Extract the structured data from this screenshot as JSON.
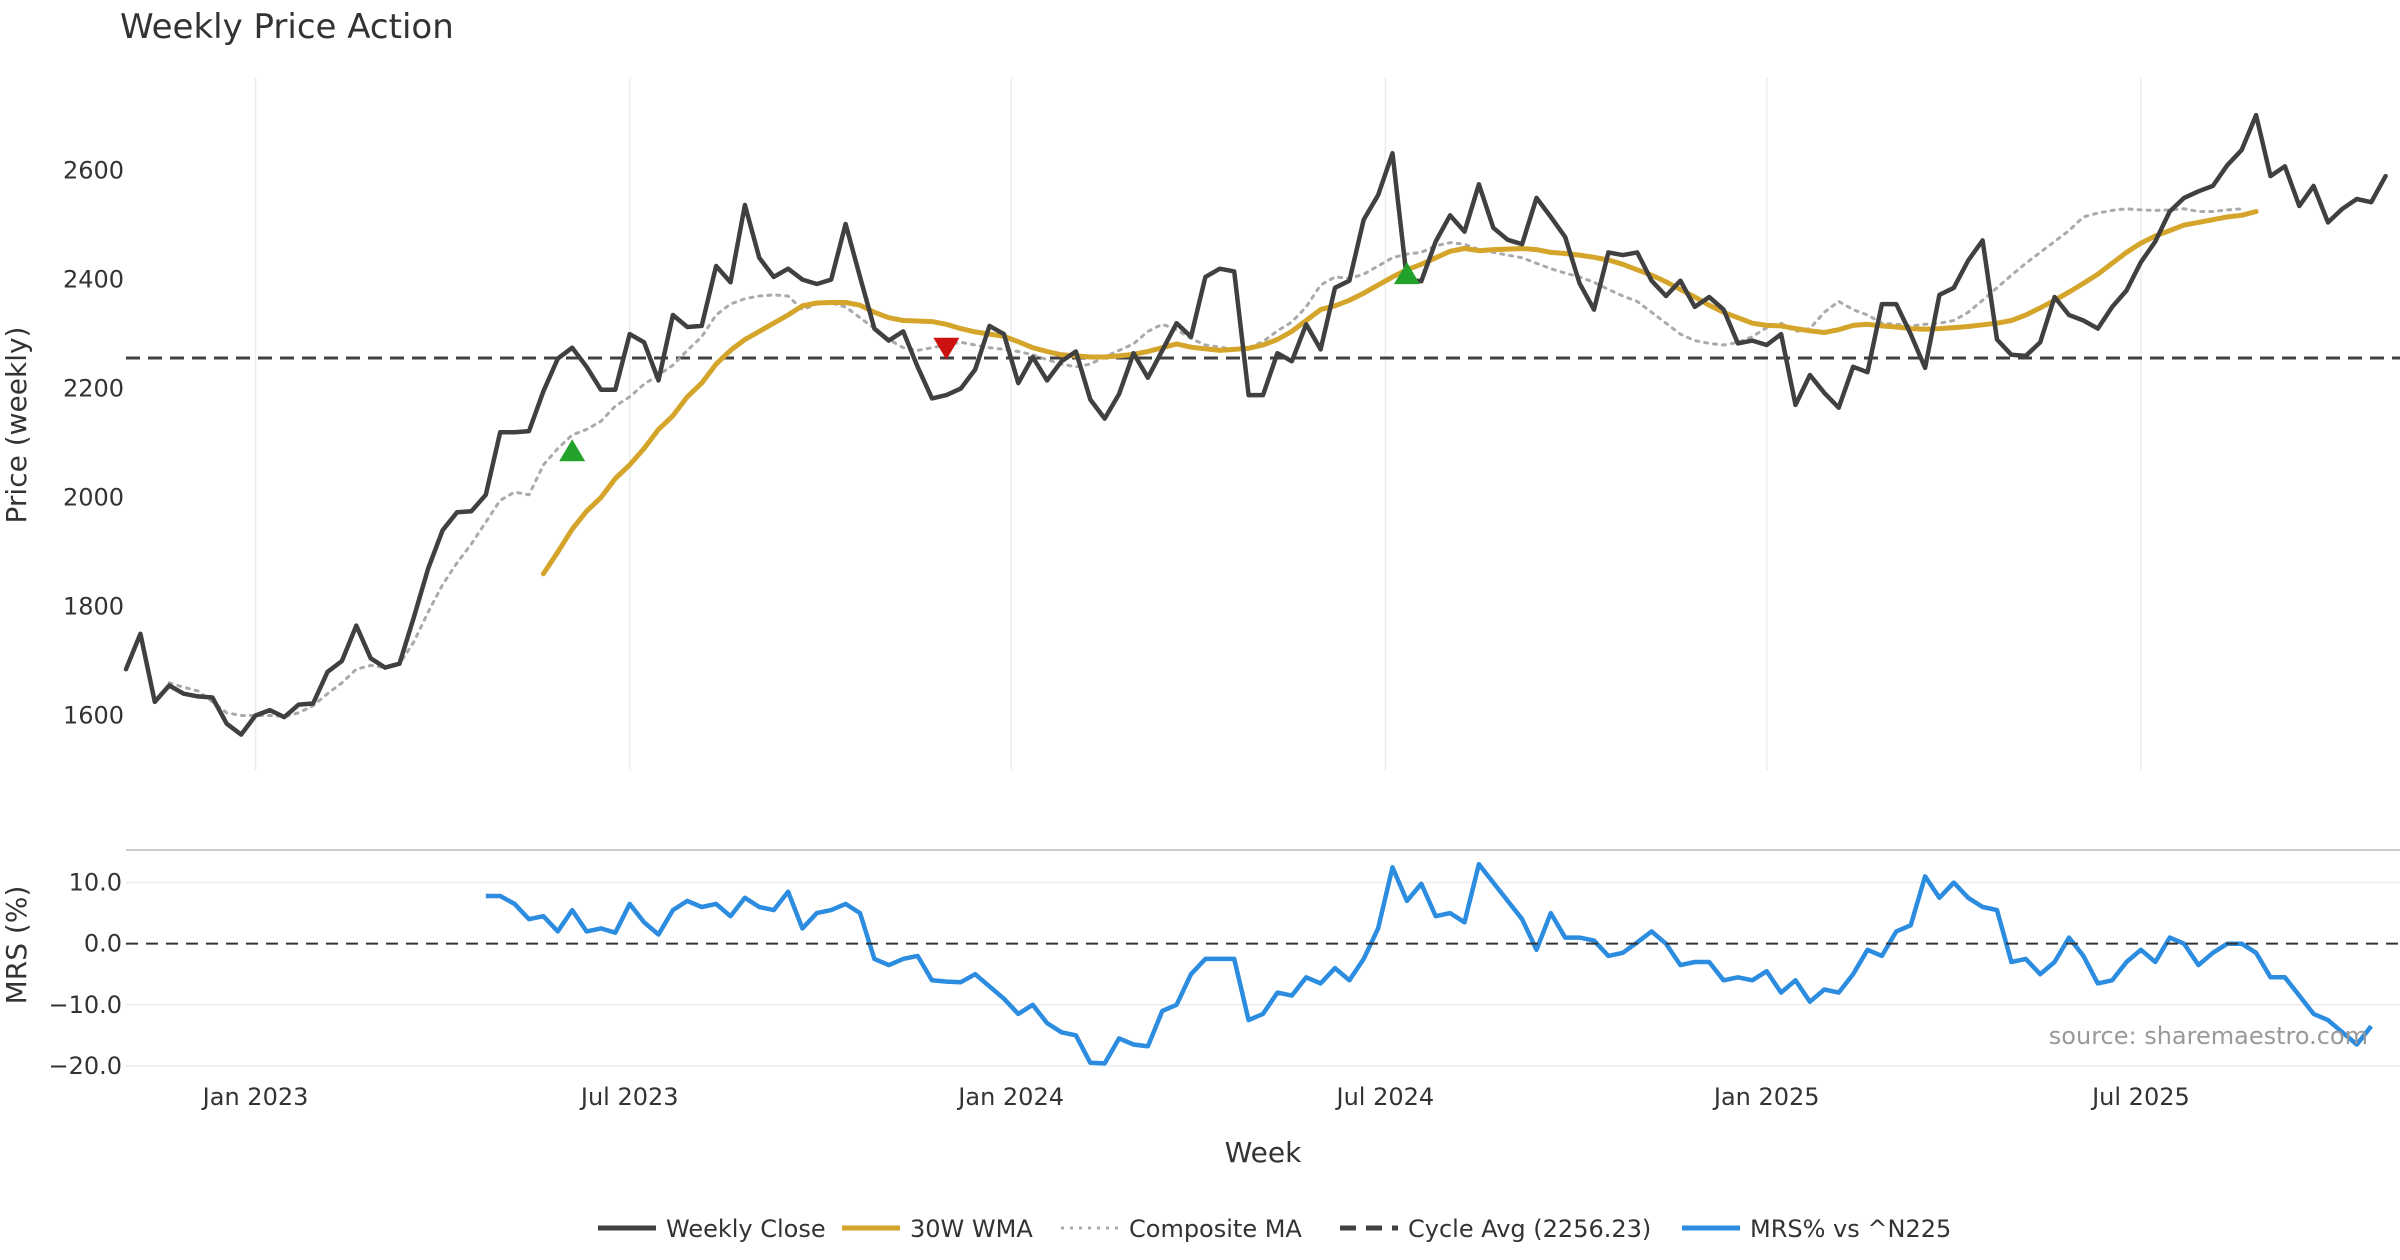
{
  "chart_data": [
    {
      "type": "line",
      "title": "Weekly Price Action",
      "xlabel": "Week",
      "ylabel": "Price (weekly)",
      "ylim": [
        1500,
        2770
      ],
      "yticks": [
        1600,
        1800,
        2000,
        2200,
        2400,
        2600
      ],
      "xticks": [
        {
          "label": "Jan 2023",
          "week": 9
        },
        {
          "label": "Jul 2023",
          "week": 35
        },
        {
          "label": "Jan 2024",
          "week": 61.5
        },
        {
          "label": "Jul 2024",
          "week": 87.5
        },
        {
          "label": "Jan 2025",
          "week": 114
        },
        {
          "label": "Jul 2025",
          "week": 140
        }
      ],
      "x_range": [
        0,
        158
      ],
      "grid": true,
      "series": [
        {
          "name": "Weekly Close",
          "color": "#404040",
          "style": "solid",
          "values": [
            1685,
            1750,
            1625,
            1655,
            1640,
            1635,
            1633,
            1585,
            1565,
            1600,
            1610,
            1597,
            1620,
            1622,
            1680,
            1700,
            1765,
            1705,
            1688,
            1695,
            1780,
            1870,
            1940,
            1973,
            1975,
            2005,
            2120,
            2120,
            2122,
            2195,
            2255,
            2275,
            2240,
            2198,
            2198,
            2300,
            2285,
            2215,
            2335,
            2313,
            2315,
            2425,
            2395,
            2537,
            2440,
            2405,
            2420,
            2400,
            2392,
            2400,
            2502,
            2405,
            2310,
            2288,
            2305,
            2240,
            2182,
            2188,
            2200,
            2235,
            2315,
            2300,
            2210,
            2258,
            2215,
            2250,
            2268,
            2180,
            2145,
            2190,
            2265,
            2220,
            2270,
            2320,
            2295,
            2405,
            2420,
            2415,
            2188,
            2188,
            2265,
            2250,
            2318,
            2272,
            2385,
            2398,
            2510,
            2555,
            2632,
            2400,
            2397,
            2470,
            2518,
            2488,
            2575,
            2495,
            2473,
            2465,
            2550,
            2515,
            2478,
            2393,
            2345,
            2450,
            2445,
            2450,
            2398,
            2370,
            2398,
            2350,
            2368,
            2345,
            2283,
            2288,
            2280,
            2300,
            2170,
            2225,
            2192,
            2165,
            2240,
            2230,
            2355,
            2355,
            2300,
            2238,
            2372,
            2385,
            2435,
            2472,
            2290,
            2262,
            2260,
            2285,
            2368,
            2335,
            2325,
            2310,
            2350,
            2380,
            2432,
            2470,
            2525,
            2550,
            2562,
            2572,
            2610,
            2638,
            2702,
            2590,
            2608,
            2535,
            2572,
            2505,
            2530,
            2548,
            2542,
            2590
          ]
        },
        {
          "name": "30W WMA",
          "color": "#d4a52a",
          "style": "solid",
          "start": 29,
          "values": [
            1860,
            1900,
            1942,
            1975,
            2000,
            2035,
            2060,
            2090,
            2125,
            2150,
            2185,
            2210,
            2245,
            2270,
            2290,
            2305,
            2320,
            2335,
            2352,
            2357,
            2358,
            2358,
            2353,
            2340,
            2330,
            2325,
            2324,
            2323,
            2318,
            2310,
            2304,
            2300,
            2296,
            2286,
            2275,
            2268,
            2262,
            2260,
            2258,
            2258,
            2260,
            2263,
            2268,
            2275,
            2282,
            2276,
            2273,
            2270,
            2272,
            2274,
            2280,
            2290,
            2305,
            2325,
            2345,
            2352,
            2362,
            2375,
            2390,
            2405,
            2418,
            2428,
            2440,
            2452,
            2457,
            2453,
            2455,
            2456,
            2457,
            2455,
            2450,
            2448,
            2445,
            2441,
            2436,
            2428,
            2418,
            2408,
            2396,
            2382,
            2368,
            2353,
            2340,
            2330,
            2320,
            2316,
            2315,
            2310,
            2306,
            2303,
            2308,
            2316,
            2318,
            2315,
            2313,
            2310,
            2309,
            2310,
            2312,
            2314,
            2317,
            2320,
            2325,
            2335,
            2348,
            2362,
            2377,
            2393,
            2410,
            2430,
            2450,
            2467,
            2480,
            2490,
            2500,
            2505,
            2510,
            2515,
            2518,
            2525
          ]
        },
        {
          "name": "Composite MA",
          "color": "#aaaaaa",
          "style": "dotted",
          "start": 3,
          "values": [
            1660,
            1652,
            1645,
            1625,
            1605,
            1600,
            1600,
            1600,
            1598,
            1605,
            1618,
            1640,
            1660,
            1685,
            1692,
            1688,
            1695,
            1735,
            1790,
            1840,
            1880,
            1915,
            1955,
            1995,
            2010,
            2005,
            2060,
            2090,
            2115,
            2125,
            2140,
            2168,
            2185,
            2208,
            2225,
            2243,
            2270,
            2295,
            2335,
            2355,
            2365,
            2370,
            2372,
            2370,
            2345,
            2355,
            2357,
            2350,
            2330,
            2310,
            2290,
            2275,
            2270,
            2275,
            2280,
            2285,
            2280,
            2275,
            2272,
            2268,
            2262,
            2253,
            2245,
            2240,
            2245,
            2258,
            2270,
            2282,
            2305,
            2318,
            2308,
            2292,
            2280,
            2276,
            2272,
            2275,
            2286,
            2306,
            2322,
            2350,
            2390,
            2405,
            2402,
            2410,
            2425,
            2440,
            2447,
            2450,
            2462,
            2468,
            2465,
            2455,
            2450,
            2445,
            2440,
            2430,
            2420,
            2412,
            2405,
            2395,
            2382,
            2370,
            2360,
            2340,
            2320,
            2300,
            2288,
            2283,
            2280,
            2285,
            2295,
            2312,
            2320,
            2305,
            2310,
            2340,
            2360,
            2345,
            2335,
            2320,
            2318,
            2315,
            2318,
            2320,
            2325,
            2340,
            2362,
            2385,
            2408,
            2430,
            2450,
            2470,
            2490,
            2515,
            2522,
            2527,
            2530,
            2528,
            2527,
            2528,
            2530,
            2525,
            2525,
            2528,
            2530
          ]
        },
        {
          "name": "Cycle Avg (2256.23)",
          "color": "#404040",
          "style": "dashed",
          "value": 2256.23
        }
      ],
      "markers": [
        {
          "type": "buy",
          "shape": "triangle-up",
          "color": "#22a12b",
          "week": 31,
          "value": 2085
        },
        {
          "type": "sell",
          "shape": "triangle-down",
          "color": "#cc1111",
          "week": 57,
          "value": 2275
        },
        {
          "type": "buy",
          "shape": "triangle-up",
          "color": "#22a12b",
          "week": 89,
          "value": 2410
        }
      ]
    },
    {
      "type": "line",
      "ylabel": "MRS (%)",
      "ylim": [
        -21,
        15
      ],
      "yticks": [
        -20.0,
        -10.0,
        0.0,
        10.0
      ],
      "ytick_labels": [
        "−20.0",
        "−10.0",
        "0.0",
        "10.0"
      ],
      "x_range": [
        0,
        158
      ],
      "series": [
        {
          "name": "MRS% vs ^N225",
          "color": "#2b8ce0",
          "style": "solid",
          "start": 25,
          "values": [
            7.8,
            7.8,
            6.5,
            4.0,
            4.5,
            2.0,
            5.5,
            2.0,
            2.5,
            1.8,
            6.5,
            3.5,
            1.5,
            5.5,
            7.0,
            6.0,
            6.5,
            4.5,
            7.5,
            6.0,
            5.5,
            8.5,
            2.5,
            5.0,
            5.5,
            6.5,
            5.0,
            -2.5,
            -3.5,
            -2.5,
            -2.0,
            -6.0,
            -6.2,
            -6.3,
            -5.0,
            -7.0,
            -9.0,
            -11.5,
            -10.0,
            -13.0,
            -14.5,
            -15.0,
            -19.5,
            -19.6,
            -15.5,
            -16.5,
            -16.8,
            -11.0,
            -10.0,
            -5.0,
            -2.5,
            -2.5,
            -2.5,
            -12.5,
            -11.5,
            -8.0,
            -8.5,
            -5.5,
            -6.5,
            -4.0,
            -6.0,
            -2.5,
            2.5,
            12.5,
            7.0,
            9.8,
            4.5,
            5.0,
            3.5,
            13.0,
            10.0,
            7.0,
            4.0,
            -1.0,
            5.0,
            1.0,
            1.0,
            0.5,
            -2.0,
            -1.5,
            0.2,
            2.0,
            0.0,
            -3.5,
            -3.0,
            -3.0,
            -6.0,
            -5.5,
            -6.0,
            -4.5,
            -8.0,
            -6.0,
            -9.5,
            -7.5,
            -8.0,
            -5.0,
            -1.0,
            -2.0,
            2.0,
            3.0,
            11.0,
            7.5,
            10.0,
            7.5,
            6.0,
            5.5,
            -3.0,
            -2.5,
            -5.0,
            -3.0,
            1.0,
            -2.0,
            -6.5,
            -6.0,
            -3.0,
            -1.0,
            -3.0,
            1.0,
            0.0,
            -3.5,
            -1.5,
            0.0,
            0.0,
            -1.5,
            -5.5,
            -5.5,
            -8.5,
            -11.5,
            -12.5,
            -14.5,
            -16.5,
            -13.5
          ]
        },
        {
          "name": "MRS zero line",
          "color": "#333333",
          "style": "dashed",
          "value": 0.0
        }
      ],
      "source": "source: sharemaestro.com"
    }
  ],
  "legend": [
    {
      "label": "Weekly Close",
      "color": "#404040",
      "style": "solid"
    },
    {
      "label": "30W WMA",
      "color": "#d4a52a",
      "style": "solid"
    },
    {
      "label": "Composite MA",
      "color": "#aaaaaa",
      "style": "dotted"
    },
    {
      "label": "Cycle Avg (2256.23)",
      "color": "#404040",
      "style": "dashed"
    },
    {
      "label": "MRS% vs ^N225",
      "color": "#2b8ce0",
      "style": "solid"
    }
  ]
}
